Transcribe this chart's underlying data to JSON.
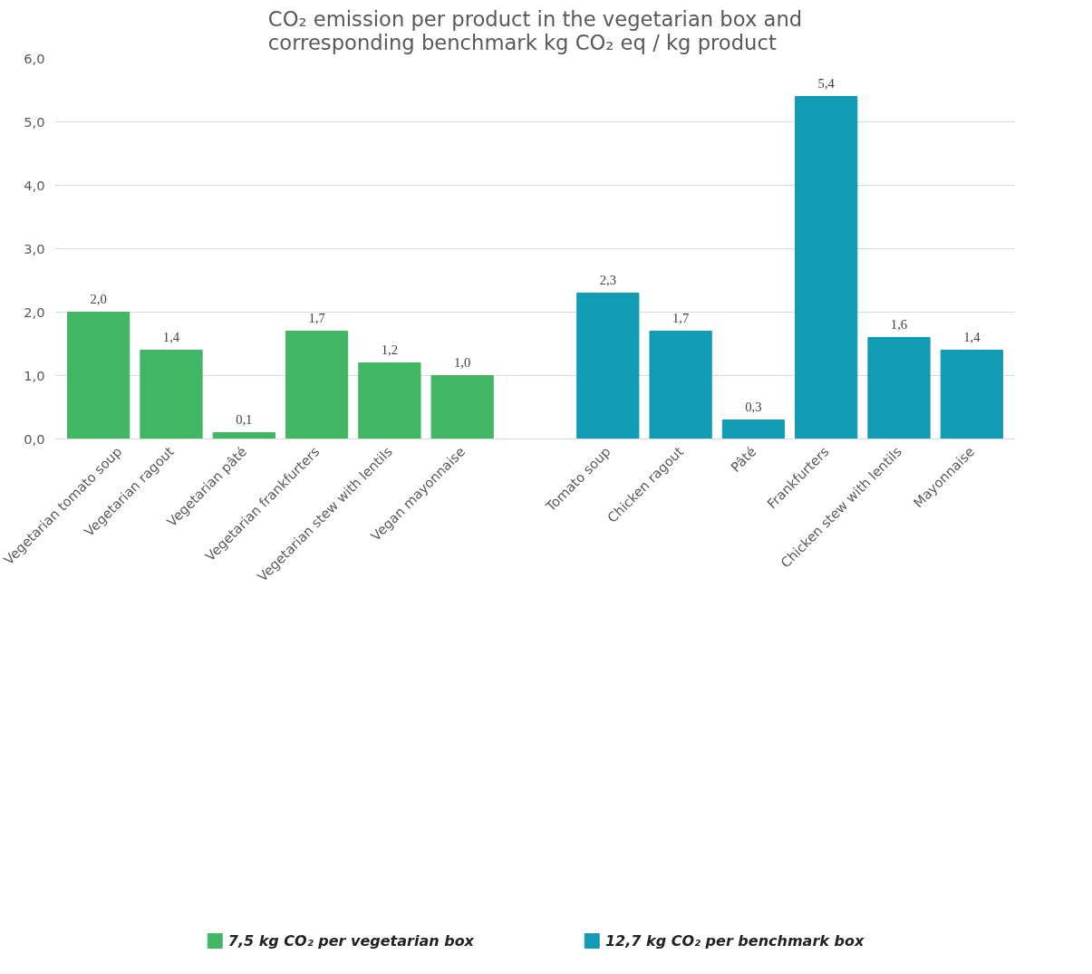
{
  "chart_data": {
    "type": "bar",
    "title": "CO₂ emission per product in the vegetarian box and corresponding benchmark kg CO₂ eq / kg product",
    "categories": [
      "Vegetarian tomato soup",
      "Vegetarian ragout",
      "Vegetarian pâté",
      "Vegetarian frankfurters",
      "Vegetarian stew with lentils",
      "Vegan mayonnaise",
      null,
      "Tomato soup",
      "Chicken ragout",
      "Pâté",
      "Frankfurters",
      "Chicken stew with lentils",
      "Mayonnaise"
    ],
    "series": [
      {
        "name": "7,5 kg CO₂ per vegetarian box",
        "color": "#41b766",
        "values": [
          2.0,
          1.4,
          0.1,
          1.7,
          1.2,
          1.0,
          null,
          null,
          null,
          null,
          null,
          null,
          null
        ],
        "value_labels": [
          "2,0",
          "1,4",
          "0,1",
          "1,7",
          "1,2",
          "1,0",
          null,
          null,
          null,
          null,
          null,
          null,
          null
        ]
      },
      {
        "name": "12,7 kg CO₂ per benchmark box",
        "color": "#119bb5",
        "values": [
          null,
          null,
          null,
          null,
          null,
          null,
          null,
          2.3,
          1.7,
          0.3,
          5.4,
          1.6,
          1.4
        ],
        "value_labels": [
          null,
          null,
          null,
          null,
          null,
          null,
          null,
          "2,3",
          "1,7",
          "0,3",
          "5,4",
          "1,6",
          "1,4"
        ]
      }
    ],
    "ylim": [
      0,
      6
    ],
    "yticks": [
      {
        "value": 0,
        "label": "0,0"
      },
      {
        "value": 1,
        "label": "1,0"
      },
      {
        "value": 2,
        "label": "2,0"
      },
      {
        "value": 3,
        "label": "3,0"
      },
      {
        "value": 4,
        "label": "4,0"
      },
      {
        "value": 5,
        "label": "5,0"
      },
      {
        "value": 6,
        "label": "6,0"
      }
    ],
    "grid": "y",
    "legend": "bottom"
  }
}
